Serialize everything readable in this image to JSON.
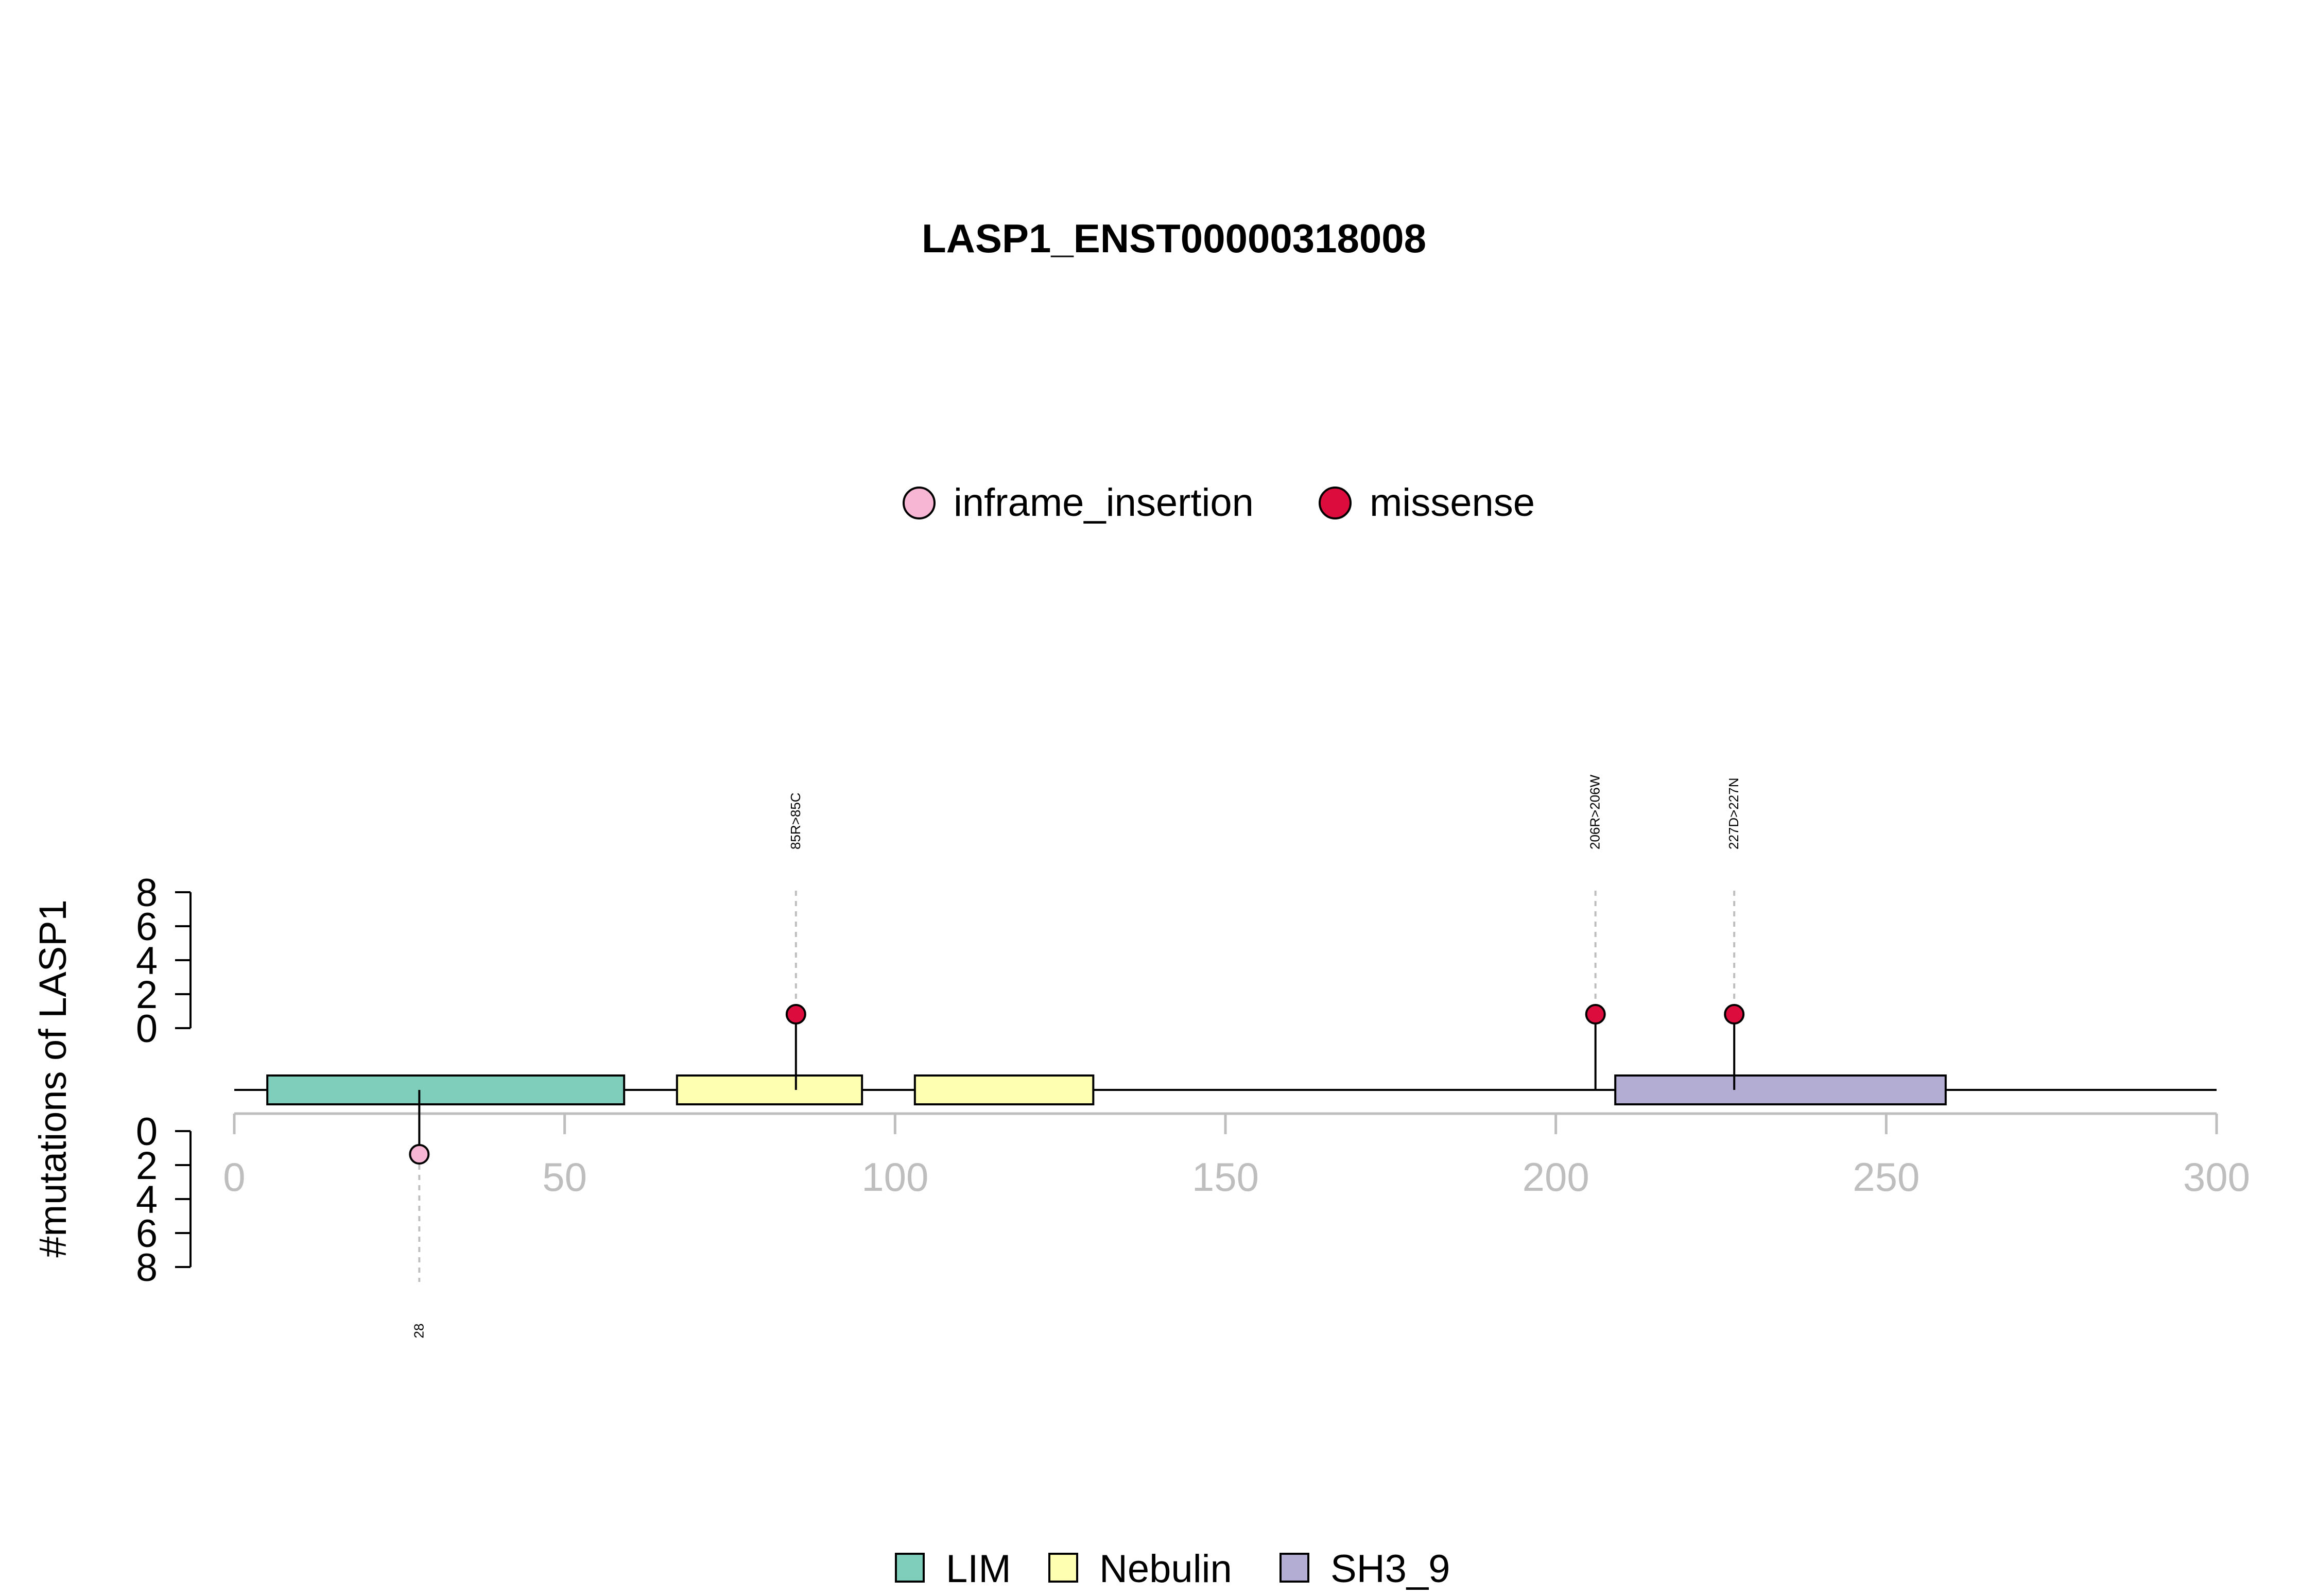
{
  "chart_data": {
    "type": "lollipop",
    "title": "LASP1_ENST00000318008",
    "ylabel": "#mutations of LASP1",
    "xlim": [
      0,
      300
    ],
    "x_ticks": [
      0,
      50,
      100,
      150,
      200,
      250,
      300
    ],
    "y_ticks_top": [
      0,
      2,
      4,
      6,
      8
    ],
    "y_ticks_bottom": [
      0,
      2,
      4,
      6,
      8
    ],
    "mutation_legend": [
      {
        "label": "inframe_insertion",
        "color": "#F7B6D3"
      },
      {
        "label": "missense",
        "color": "#DC0C3C"
      }
    ],
    "domain_legend": [
      {
        "label": "LIM",
        "color": "#7FCDBB"
      },
      {
        "label": "Nebulin",
        "color": "#FFFFB2"
      },
      {
        "label": "SH3_9",
        "color": "#B3ADD3"
      }
    ],
    "domains": [
      {
        "name": "LIM",
        "start": 5,
        "end": 59
      },
      {
        "name": "Nebulin",
        "start": 67,
        "end": 95
      },
      {
        "name": "Nebulin",
        "start": 103,
        "end": 130
      },
      {
        "name": "SH3_9",
        "start": 209,
        "end": 259
      }
    ],
    "mutations": [
      {
        "position": 28,
        "count": 1,
        "type": "inframe_insertion",
        "side": "bottom",
        "label": "28"
      },
      {
        "position": 85,
        "count": 1,
        "type": "missense",
        "side": "top",
        "label": "85R>85C"
      },
      {
        "position": 206,
        "count": 1,
        "type": "missense",
        "side": "top",
        "label": "206R>206W"
      },
      {
        "position": 227,
        "count": 1,
        "type": "missense",
        "side": "top",
        "label": "227D>227N"
      }
    ]
  }
}
